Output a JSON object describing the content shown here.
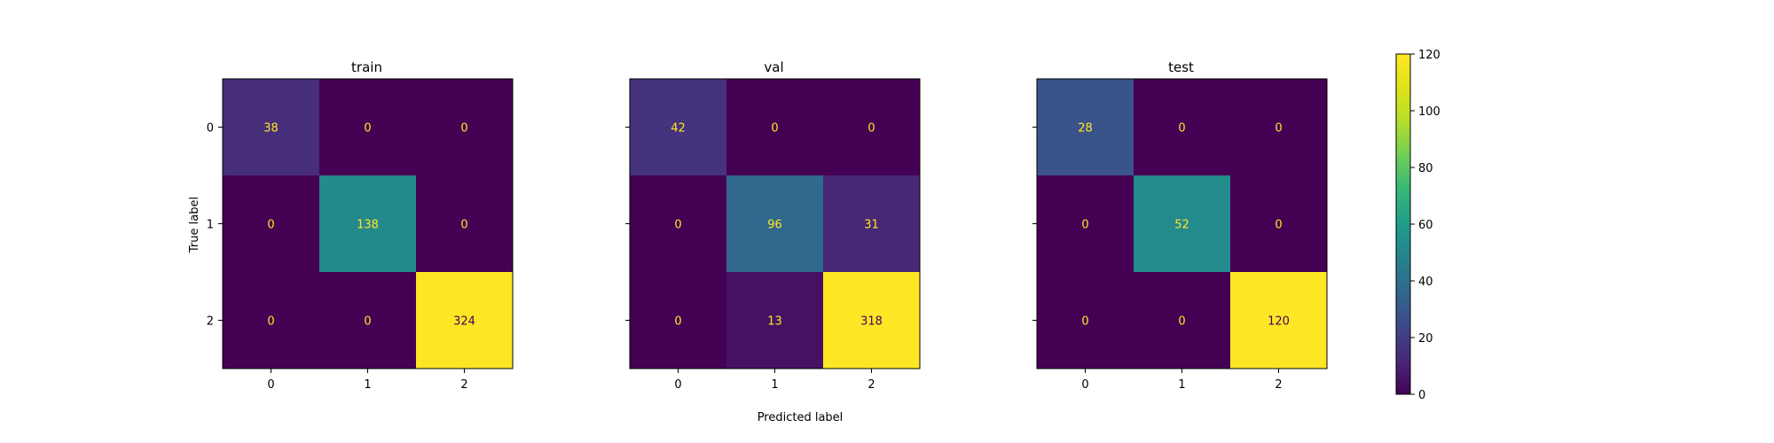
{
  "chart_data": {
    "type": "heatmap",
    "colormap": "viridis",
    "x_label": "Predicted label",
    "y_label": "True label",
    "class_labels": [
      "0",
      "1",
      "2"
    ],
    "panels": [
      {
        "title": "train",
        "matrix": [
          [
            38,
            0,
            0
          ],
          [
            0,
            138,
            0
          ],
          [
            0,
            0,
            324
          ]
        ]
      },
      {
        "title": "val",
        "matrix": [
          [
            42,
            0,
            0
          ],
          [
            0,
            96,
            31
          ],
          [
            0,
            13,
            318
          ]
        ]
      },
      {
        "title": "test",
        "matrix": [
          [
            28,
            0,
            0
          ],
          [
            0,
            52,
            0
          ],
          [
            0,
            0,
            120
          ]
        ]
      }
    ],
    "colorbar": {
      "range": [
        0,
        120
      ],
      "ticks": [
        "0",
        "20",
        "40",
        "60",
        "80",
        "100",
        "120"
      ]
    },
    "value_text_colors": {
      "dark_cell": "#fde725",
      "light_cell": "#440154"
    }
  }
}
